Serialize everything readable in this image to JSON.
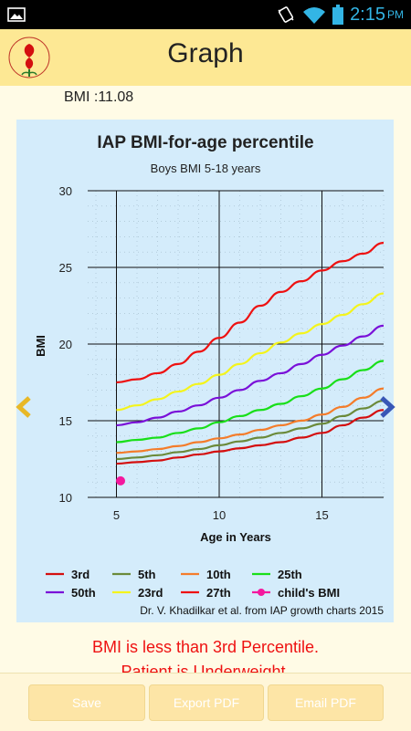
{
  "status_bar": {
    "time": "2:15",
    "ampm": "PM",
    "icons": [
      "image-icon",
      "vibrate-icon",
      "wifi-icon",
      "battery-icon"
    ]
  },
  "app_bar": {
    "title": "Graph",
    "logo": "iap-logo"
  },
  "bmi_label": "BMI :11.08",
  "colors": {
    "app_bar": "#fde894",
    "page_bg": "#fffbe6",
    "chart_bg": "#d4ecfb",
    "message": "#ee1111",
    "arrow": "#e8b827",
    "arrow_right": "#3856b6"
  },
  "chart_data": {
    "type": "line",
    "title": "IAP BMI-for-age percentile",
    "subtitle": "Boys BMI 5-18 years",
    "xlabel": "Age in Years",
    "ylabel": "BMI",
    "xlim": [
      3.6,
      18
    ],
    "ylim": [
      10,
      30
    ],
    "xticks": [
      5,
      10,
      15
    ],
    "yticks": [
      10,
      15,
      20,
      25,
      30
    ],
    "grid": true,
    "legend_position": "bottom",
    "source_note": "Dr. V. Khadilkar et al. from IAP growth charts 2015",
    "x": [
      5,
      6,
      7,
      8,
      9,
      10,
      11,
      12,
      13,
      14,
      15,
      16,
      17,
      18
    ],
    "series": [
      {
        "name": "3rd",
        "color": "#d40f0f",
        "values": [
          12.2,
          12.3,
          12.4,
          12.6,
          12.8,
          13.0,
          13.2,
          13.4,
          13.6,
          13.9,
          14.2,
          14.7,
          15.2,
          15.7
        ]
      },
      {
        "name": "5th",
        "color": "#6b8a3a",
        "values": [
          12.5,
          12.6,
          12.75,
          12.95,
          13.15,
          13.4,
          13.65,
          13.9,
          14.2,
          14.5,
          14.8,
          15.3,
          15.8,
          16.3
        ]
      },
      {
        "name": "10th",
        "color": "#f47c2b",
        "values": [
          12.9,
          13.0,
          13.15,
          13.35,
          13.6,
          13.85,
          14.1,
          14.4,
          14.7,
          15.0,
          15.4,
          15.9,
          16.5,
          17.1
        ]
      },
      {
        "name": "25th",
        "color": "#19df19",
        "values": [
          13.6,
          13.75,
          13.9,
          14.2,
          14.5,
          14.9,
          15.3,
          15.7,
          16.1,
          16.6,
          17.1,
          17.7,
          18.3,
          18.9
        ]
      },
      {
        "name": "50th",
        "color": "#7a10d8",
        "values": [
          14.7,
          14.9,
          15.2,
          15.6,
          16.0,
          16.5,
          17.0,
          17.6,
          18.1,
          18.7,
          19.3,
          19.9,
          20.5,
          21.2
        ]
      },
      {
        "name": "23rd",
        "color": "#f4f41c",
        "values": [
          15.7,
          16.0,
          16.4,
          16.9,
          17.4,
          18.0,
          18.7,
          19.4,
          20.1,
          20.7,
          21.3,
          21.9,
          22.6,
          23.3
        ]
      },
      {
        "name": "27th",
        "color": "#ee1111",
        "values": [
          17.5,
          17.7,
          18.1,
          18.7,
          19.5,
          20.4,
          21.4,
          22.5,
          23.4,
          24.1,
          24.8,
          25.4,
          25.9,
          26.6
        ]
      }
    ],
    "point": {
      "name": "child's BMI",
      "color": "#f4189e",
      "x": 5.2,
      "y": 11.08
    }
  },
  "message": {
    "line1": "BMI is less than 3rd Percentile.",
    "line2": "Patient is Underweight."
  },
  "buttons": {
    "save": "Save",
    "export_pdf": "Export PDF",
    "email_pdf": "Email PDF"
  }
}
